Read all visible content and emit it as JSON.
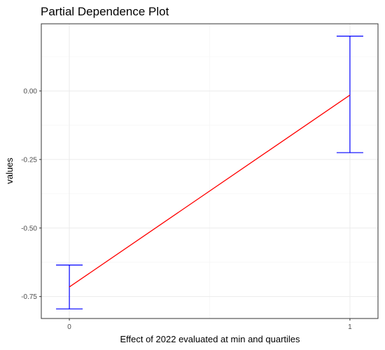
{
  "chart_data": {
    "type": "line",
    "title": "Partial Dependence Plot",
    "xlabel": "Effect of 2022 evaluated at min and quartiles",
    "ylabel": "values",
    "x": [
      0,
      1
    ],
    "x_ticks": [
      "0",
      "1"
    ],
    "y_ticks": [
      0.0,
      -0.25,
      -0.5,
      -0.75
    ],
    "y_tick_labels": [
      "0.00",
      "-0.25",
      "-0.50",
      "-0.75"
    ],
    "xlim": [
      -0.1,
      1.1
    ],
    "ylim": [
      -0.83,
      0.245
    ],
    "series": [
      {
        "values": [
          -0.715,
          -0.015
        ],
        "lower": [
          -0.795,
          -0.225
        ],
        "upper": [
          -0.635,
          0.2
        ]
      }
    ],
    "line_color": "#ff0000",
    "errorbar_color": "#0000ff",
    "grid": true
  }
}
